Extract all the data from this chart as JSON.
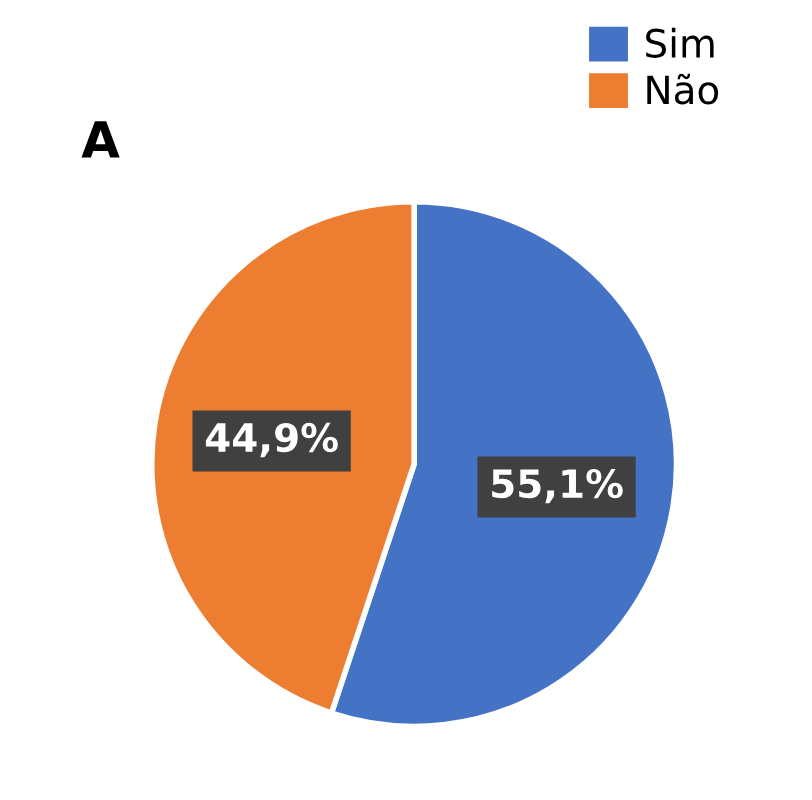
{
  "chart_data": {
    "type": "pie",
    "title": "A",
    "categories": [
      "Sim",
      "Não"
    ],
    "values": [
      55.1,
      44.9
    ],
    "colors": [
      "#4472c4",
      "#ed7d31"
    ],
    "value_labels": [
      "55,1%",
      "44,9%"
    ],
    "legend": "top right"
  }
}
